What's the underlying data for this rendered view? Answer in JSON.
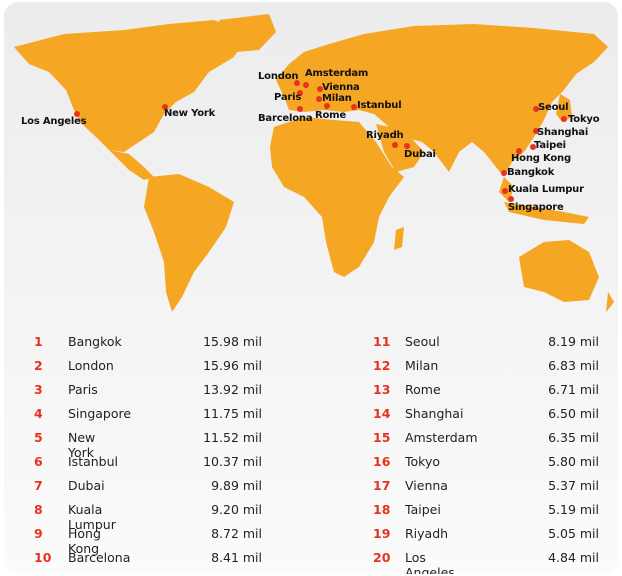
{
  "colors": {
    "land": "#F5A623",
    "marker": "#E8321E",
    "rank": "#E8321E",
    "background": "#EEEEEE"
  },
  "cities": [
    {
      "rank": "1",
      "name": "Bangkok",
      "value": "15.98 mil"
    },
    {
      "rank": "2",
      "name": "London",
      "value": "15.96 mil"
    },
    {
      "rank": "3",
      "name": "Paris",
      "value": "13.92 mil"
    },
    {
      "rank": "4",
      "name": "Singapore",
      "value": "11.75 mil"
    },
    {
      "rank": "5",
      "name": "New York",
      "value": "11.52 mil"
    },
    {
      "rank": "6",
      "name": "Istanbul",
      "value": "10.37 mil"
    },
    {
      "rank": "7",
      "name": "Dubai",
      "value": "9.89 mil"
    },
    {
      "rank": "8",
      "name": "Kuala Lumpur",
      "value": "9.20 mil"
    },
    {
      "rank": "9",
      "name": "Hong Kong",
      "value": "8.72 mil"
    },
    {
      "rank": "10",
      "name": "Barcelona",
      "value": "8.41 mil"
    },
    {
      "rank": "11",
      "name": "Seoul",
      "value": "8.19 mil"
    },
    {
      "rank": "12",
      "name": "Milan",
      "value": "6.83 mil"
    },
    {
      "rank": "13",
      "name": "Rome",
      "value": "6.71 mil"
    },
    {
      "rank": "14",
      "name": "Shanghai",
      "value": "6.50 mil"
    },
    {
      "rank": "15",
      "name": "Amsterdam",
      "value": "6.35 mil"
    },
    {
      "rank": "16",
      "name": "Tokyo",
      "value": "5.80 mil"
    },
    {
      "rank": "17",
      "name": "Vienna",
      "value": "5.37 mil"
    },
    {
      "rank": "18",
      "name": "Taipei",
      "value": "5.19 mil"
    },
    {
      "rank": "19",
      "name": "Riyadh",
      "value": "5.05 mil"
    },
    {
      "rank": "20",
      "name": "Los Angeles",
      "value": "4.84 mil"
    }
  ]
}
